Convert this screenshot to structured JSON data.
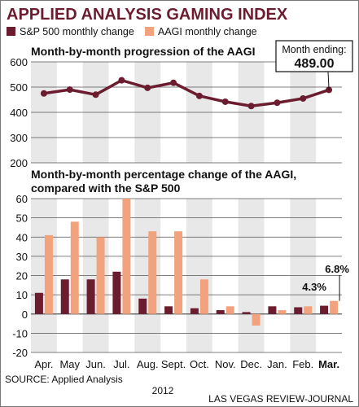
{
  "title": "APPLIED ANALYSIS GAMING INDEX",
  "credit": "LAS VEGAS REVIEW-JOURNAL",
  "source": "SOURCE: Applied Analysis",
  "legend": [
    {
      "label": "S&P 500 monthly change",
      "color": "#6b1d2f"
    },
    {
      "label": "AAGI monthly change",
      "color": "#f2a27c"
    }
  ],
  "chart_data": [
    {
      "type": "line",
      "title": "Month-by-month progression of the AAGI",
      "categories": [
        "Apr.",
        "May",
        "Jun.",
        "Jul.",
        "Aug.",
        "Sept.",
        "Oct.",
        "Nov.",
        "Dec.",
        "Jan.",
        "Feb.",
        "Mar."
      ],
      "series": [
        {
          "values": [
            475,
            490,
            470,
            527,
            497,
            517,
            465,
            442,
            425,
            438,
            455,
            489
          ]
        }
      ],
      "ylim": [
        200,
        600
      ],
      "yticks": [
        200,
        300,
        400,
        500,
        600
      ],
      "line_color": "#6b1d2f",
      "callout": {
        "label": "Month ending:",
        "value": "489.00"
      }
    },
    {
      "type": "bar",
      "title_line1": "Month-by-month percentage change of the AAGI,",
      "title_line2": "compared with the S&P 500",
      "categories": [
        "Apr.",
        "May",
        "Jun.",
        "Jul.",
        "Aug.",
        "Sept.",
        "Oct.",
        "Nov.",
        "Dec.",
        "Jan.",
        "Feb.",
        "Mar."
      ],
      "year_label": "2012",
      "series": [
        {
          "name": "S&P 500 monthly change",
          "values": [
            11,
            18,
            18,
            22,
            8,
            4,
            3,
            2,
            1,
            4,
            3.5,
            4.3
          ],
          "color": "#6b1d2f"
        },
        {
          "name": "AAGI monthly change",
          "values": [
            41,
            48,
            40,
            60,
            43,
            43,
            18,
            4,
            -6,
            2,
            4,
            6.8
          ],
          "color": "#f2a27c"
        }
      ],
      "ylim": [
        -20,
        60
      ],
      "yticks": [
        -20,
        -10,
        0,
        10,
        20,
        30,
        40,
        50,
        60
      ],
      "annotations": [
        {
          "text": "4.3%",
          "series": 0,
          "index": 11
        },
        {
          "text": "6.8%",
          "series": 1,
          "index": 11
        }
      ]
    }
  ]
}
